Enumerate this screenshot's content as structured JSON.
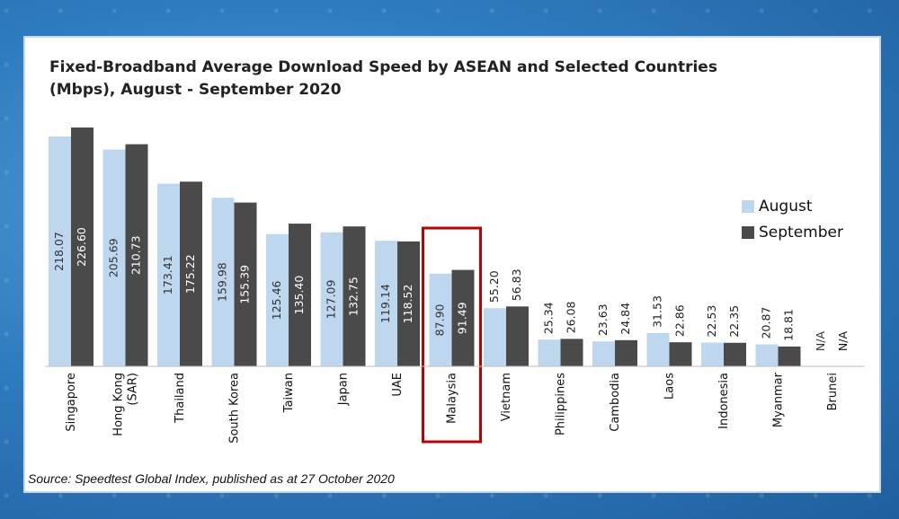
{
  "chart_data": {
    "type": "bar",
    "title": "Fixed-Broadband Average Download Speed by ASEAN and Selected Countries",
    "subtitle": "(Mbps), August - September 2020",
    "categories": [
      "Singapore",
      "Hong Kong (SAR)",
      "Thailand",
      "South Korea",
      "Taiwan",
      "Japan",
      "UAE",
      "Malaysia",
      "Vietnam",
      "Philippines",
      "Cambodia",
      "Laos",
      "Indonesia",
      "Myanmar",
      "Brunei"
    ],
    "series": [
      {
        "name": "August",
        "color": "#bdd7ee",
        "values": [
          218.07,
          205.69,
          173.41,
          159.98,
          125.46,
          127.09,
          119.14,
          87.9,
          55.2,
          25.34,
          23.63,
          31.53,
          22.53,
          20.87,
          null
        ],
        "labels": [
          "218.07",
          "205.69",
          "173.41",
          "159.98",
          "125.46",
          "127.09",
          "119.14",
          "87.90",
          "55.20",
          "25.34",
          "23.63",
          "31.53",
          "22.53",
          "20.87",
          "N/A"
        ]
      },
      {
        "name": "September",
        "color": "#4a4a4a",
        "values": [
          226.6,
          210.73,
          175.22,
          155.39,
          135.4,
          132.75,
          118.52,
          91.49,
          56.83,
          26.08,
          24.84,
          22.86,
          22.35,
          18.81,
          null
        ],
        "labels": [
          "226.60",
          "210.73",
          "175.22",
          "155.39",
          "135.40",
          "132.75",
          "118.52",
          "91.49",
          "56.83",
          "26.08",
          "24.84",
          "22.86",
          "22.35",
          "18.81",
          "N/A"
        ]
      }
    ],
    "ylim": [
      0,
      230
    ],
    "grid": false,
    "legend": "right",
    "highlight": "Malaysia",
    "highlight_color": "#c00000"
  },
  "source": "Source: Speedtest Global Index, published as at 27 October 2020"
}
